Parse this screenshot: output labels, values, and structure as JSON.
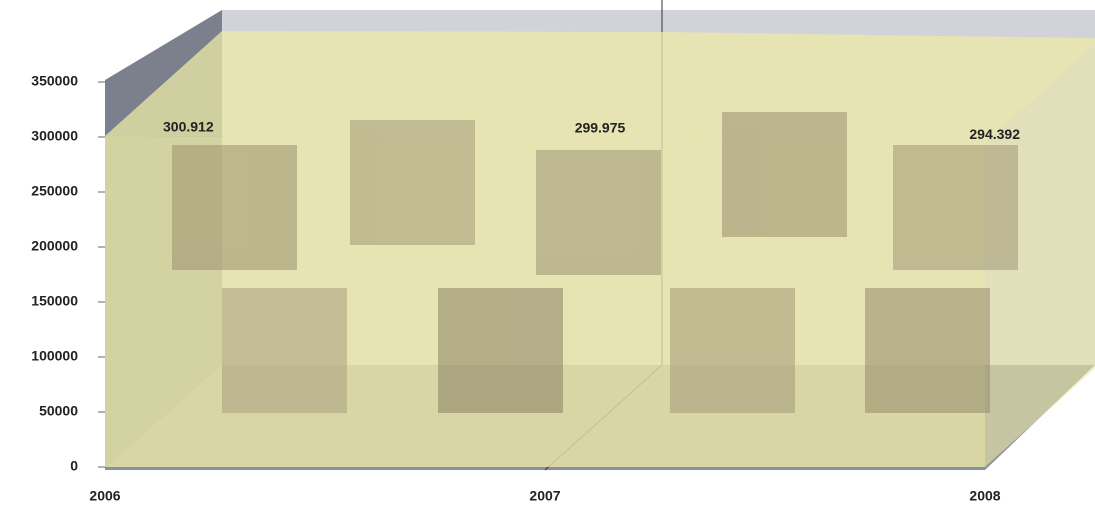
{
  "chart_data": {
    "type": "area3d",
    "categories": [
      "2006",
      "2007",
      "2008"
    ],
    "series": [
      {
        "color": "#ece9a6",
        "values": [
          300912,
          299975,
          294392
        ],
        "value_labels": [
          "300.912",
          "299.975",
          "294.392"
        ]
      }
    ],
    "ylim": [
      0,
      350000
    ],
    "yticks": [
      0,
      50000,
      100000,
      150000,
      200000,
      250000,
      300000,
      350000
    ]
  }
}
